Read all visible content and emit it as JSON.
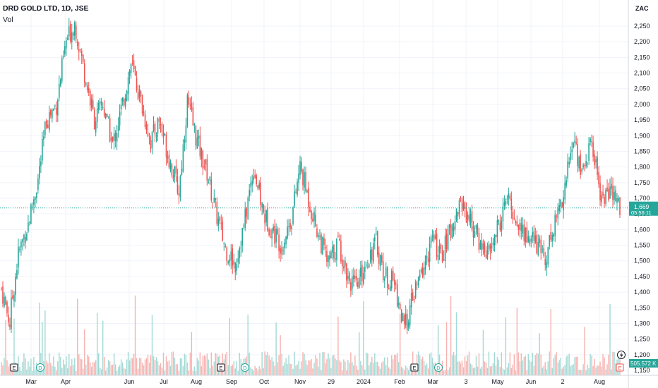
{
  "header": {
    "symbol_line": "DRD GOLD LTD, 1D, JSE",
    "volume_label": "Vol"
  },
  "currency": "ZAC",
  "colors": {
    "up": "#26a69a",
    "down": "#ef5350",
    "up_volume": "#a3d9d4",
    "down_volume": "#f7b2b0",
    "grid": "#f0f3fa",
    "axis_border": "#d1d4dc",
    "last_price_line": "#26a69a"
  },
  "last_price": {
    "value": 1669,
    "label": "1,669",
    "countdown": "05:56:11"
  },
  "last_volume": {
    "label": "505.572 K"
  },
  "events": [
    {
      "type": "E",
      "x_label_index": 0,
      "icon": "earnings-icon"
    },
    {
      "type": "D",
      "x_label_index": 1,
      "icon": "dividend-icon"
    },
    {
      "type": "E",
      "x_label_index": 2,
      "icon": "earnings-icon"
    },
    {
      "type": "D",
      "x_label_index": 3,
      "icon": "dividend-icon"
    },
    {
      "type": "E",
      "x_label_index": 4,
      "icon": "earnings-icon"
    },
    {
      "type": "D",
      "x_label_index": 5,
      "icon": "dividend-icon"
    },
    {
      "type": "E",
      "x_label_index": 6,
      "icon": "earnings-icon"
    }
  ],
  "chart_data": {
    "type": "candlestick",
    "ylim": [
      1150,
      2300
    ],
    "y_ticks": [
      1150,
      1200,
      1250,
      1300,
      1350,
      1400,
      1450,
      1500,
      1550,
      1600,
      1650,
      1700,
      1750,
      1800,
      1850,
      1900,
      1950,
      2000,
      2050,
      2100,
      2150,
      2200,
      2250
    ],
    "y_tick_labels": [
      "1,150",
      "1,200",
      "1,250",
      "1,300",
      "1,350",
      "1,400",
      "1,450",
      "1,500",
      "1,550",
      "1,600",
      "1,650",
      "1,700",
      "1,750",
      "1,800",
      "1,850",
      "1,900",
      "1,950",
      "2,000",
      "2,050",
      "2,100",
      "2,150",
      "2,200",
      "2,250"
    ],
    "x_tick_labels": [
      "Mar",
      "Apr",
      "Jun",
      "Jul",
      "Aug",
      "Sep",
      "Oct",
      "Nov",
      "29",
      "2024",
      "Feb",
      "Mar",
      "3",
      "May",
      "Jun",
      "2",
      "Aug"
    ],
    "grid": true,
    "series": [
      {
        "name": "Price",
        "points": [
          [
            1430,
            1300
          ],
          [
            1320,
            1520
          ],
          [
            1520,
            1620
          ],
          [
            1620,
            1760
          ],
          [
            1760,
            1950
          ],
          [
            1950,
            2000
          ],
          [
            2000,
            2200
          ],
          [
            2200,
            2260
          ],
          [
            2260,
            2100
          ],
          [
            2100,
            1950
          ],
          [
            1950,
            2000
          ],
          [
            2000,
            1870
          ],
          [
            1870,
            2000
          ],
          [
            2000,
            2130
          ],
          [
            2130,
            2010
          ],
          [
            2010,
            1880
          ],
          [
            1880,
            1950
          ],
          [
            1950,
            1830
          ],
          [
            1830,
            1720
          ],
          [
            1720,
            2010
          ],
          [
            2010,
            1880
          ],
          [
            1880,
            1780
          ],
          [
            1780,
            1660
          ],
          [
            1660,
            1540
          ],
          [
            1540,
            1490
          ],
          [
            1490,
            1610
          ],
          [
            1610,
            1800
          ],
          [
            1800,
            1650
          ],
          [
            1650,
            1600
          ],
          [
            1600,
            1550
          ],
          [
            1550,
            1640
          ],
          [
            1640,
            1800
          ],
          [
            1800,
            1680
          ],
          [
            1680,
            1570
          ],
          [
            1570,
            1490
          ],
          [
            1490,
            1560
          ],
          [
            1560,
            1450
          ],
          [
            1450,
            1410
          ],
          [
            1410,
            1500
          ],
          [
            1500,
            1560
          ],
          [
            1560,
            1450
          ],
          [
            1450,
            1430
          ],
          [
            1430,
            1280
          ],
          [
            1280,
            1380
          ],
          [
            1380,
            1470
          ],
          [
            1470,
            1570
          ],
          [
            1570,
            1510
          ],
          [
            1510,
            1600
          ],
          [
            1600,
            1690
          ],
          [
            1690,
            1640
          ],
          [
            1640,
            1560
          ],
          [
            1560,
            1520
          ],
          [
            1520,
            1600
          ],
          [
            1600,
            1700
          ],
          [
            1700,
            1620
          ],
          [
            1620,
            1580
          ],
          [
            1580,
            1560
          ],
          [
            1560,
            1510
          ],
          [
            1510,
            1610
          ],
          [
            1610,
            1720
          ],
          [
            1720,
            1890
          ],
          [
            1890,
            1780
          ],
          [
            1780,
            1880
          ],
          [
            1880,
            1700
          ],
          [
            1700,
            1720
          ],
          [
            1720,
            1669
          ]
        ]
      }
    ]
  }
}
